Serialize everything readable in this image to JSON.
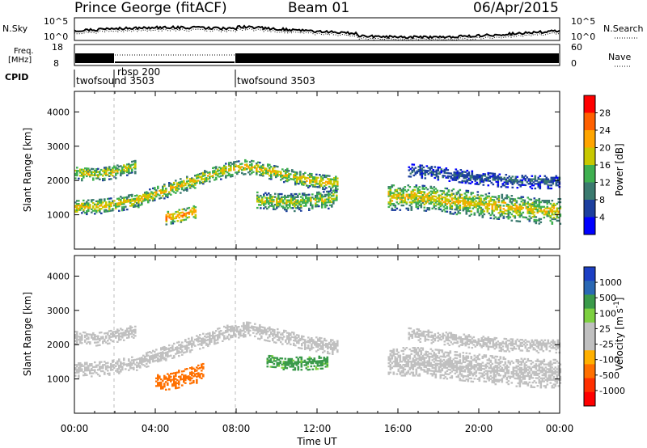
{
  "header": {
    "station": "Prince George (fitACF)",
    "beam": "Beam 01",
    "date": "06/Apr/2015"
  },
  "nsky_panel": {
    "left_label": "N.Sky",
    "right_label": "N.Search",
    "tick_top": "10^5",
    "tick_bottom": "10^0",
    "right_tick_top": "10^5",
    "right_tick_bottom": "10^0"
  },
  "freq_panel": {
    "left_label": "Freq.",
    "left_unit": "[MHz]",
    "right_label": "Nave",
    "left_tick_top": "18",
    "left_tick_bottom": "8",
    "right_tick_top": "60",
    "right_tick_bottom": "0"
  },
  "cpid_panel": {
    "label": "CPID",
    "segments": [
      {
        "label": "twofsound 3503",
        "start_hour": 0
      },
      {
        "label": "rbsp 200",
        "start_hour": 2
      },
      {
        "label": "twofsound 3503",
        "start_hour": 8
      }
    ]
  },
  "colors": {
    "power_scale": [
      "#0000ff",
      "#1d3f9e",
      "#3b7a6f",
      "#3fb050",
      "#c8c800",
      "#ffa500",
      "#ff6000",
      "#ff0000"
    ],
    "velocity_scale": [
      "#1c3fc4",
      "#2a68b4",
      "#3a9a4a",
      "#7dd040",
      "#c0c0c0",
      "#c0c0c0",
      "#ffb000",
      "#ff7000",
      "#ff3000",
      "#ff0000"
    ]
  },
  "chart_data": [
    {
      "type": "heatmap",
      "name": "power-panel",
      "xlabel": "",
      "ylabel": "Slant Range [km]",
      "x_range_hours": [
        0,
        24
      ],
      "ylim": [
        0,
        4600
      ],
      "yticks": [
        1000,
        2000,
        3000,
        4000
      ],
      "colorbar": {
        "label": "Power [dB]",
        "ticks": [
          "28",
          "24",
          "20",
          "16",
          "12",
          "8",
          "4"
        ],
        "range": [
          0,
          32
        ]
      },
      "bands": [
        {
          "x": [
            0.0,
            1.5,
            3.0,
            4.5,
            6.0,
            7.5,
            8.5,
            10.0,
            11.5,
            13.0
          ],
          "y": [
            1200,
            1250,
            1400,
            1700,
            2000,
            2300,
            2400,
            2200,
            2000,
            1900
          ],
          "width": 220,
          "value": 20
        },
        {
          "x": [
            0.0,
            1.0,
            2.0,
            3.0
          ],
          "y": [
            2200,
            2150,
            2250,
            2400
          ],
          "width": 200,
          "value": 19
        },
        {
          "x": [
            4.5,
            5.0,
            5.5,
            6.0
          ],
          "y": [
            900,
            950,
            1000,
            1100
          ],
          "width": 200,
          "value": 25
        },
        {
          "x": [
            9.0,
            10.0,
            11.0,
            12.0,
            13.0
          ],
          "y": [
            1400,
            1350,
            1350,
            1400,
            1450
          ],
          "width": 260,
          "value": 18
        },
        {
          "x": [
            15.5,
            17.0,
            18.5,
            20.0,
            21.5,
            23.0,
            24.0
          ],
          "y": [
            1500,
            1500,
            1400,
            1300,
            1200,
            1100,
            1100
          ],
          "width": 380,
          "value": 20
        },
        {
          "x": [
            16.5,
            18.0,
            19.5,
            21.0,
            22.5,
            24.0
          ],
          "y": [
            2300,
            2200,
            2100,
            2000,
            1950,
            1950
          ],
          "width": 200,
          "value": 8
        }
      ]
    },
    {
      "type": "heatmap",
      "name": "velocity-panel",
      "xlabel": "Time UT",
      "ylabel": "Slant Range [km]",
      "x_range_hours": [
        0,
        24
      ],
      "xticks": [
        "00:00",
        "04:00",
        "08:00",
        "12:00",
        "16:00",
        "20:00",
        "00:00"
      ],
      "ylim": [
        0,
        4600
      ],
      "yticks": [
        1000,
        2000,
        3000,
        4000
      ],
      "colorbar": {
        "label": "Velocity [m s",
        "label_superscript": "-1",
        "label_suffix": "]",
        "ticks": [
          "1000",
          "500",
          "100",
          "25",
          "-25",
          "-100",
          "-500",
          "-1000"
        ]
      },
      "bands": [
        {
          "x": [
            0.0,
            1.5,
            3.0,
            4.5,
            6.0,
            7.5,
            8.5,
            10.0,
            11.5,
            13.0
          ],
          "y": [
            1250,
            1300,
            1450,
            1750,
            2050,
            2350,
            2450,
            2250,
            2050,
            1900
          ],
          "width": 220,
          "value": 0
        },
        {
          "x": [
            0.0,
            1.0,
            2.0,
            3.0
          ],
          "y": [
            2200,
            2150,
            2250,
            2400
          ],
          "width": 200,
          "value": 0
        },
        {
          "x": [
            4.0,
            4.8,
            5.6,
            6.4
          ],
          "y": [
            900,
            950,
            1050,
            1200
          ],
          "width": 260,
          "value": -300
        },
        {
          "x": [
            9.5,
            10.5,
            11.5,
            12.5
          ],
          "y": [
            1500,
            1450,
            1450,
            1500
          ],
          "width": 200,
          "value": 250
        },
        {
          "x": [
            15.5,
            17.0,
            18.5,
            20.0,
            21.5,
            23.0,
            24.0
          ],
          "y": [
            1500,
            1500,
            1400,
            1300,
            1200,
            1150,
            1150
          ],
          "width": 420,
          "value": 0
        },
        {
          "x": [
            16.5,
            18.0,
            19.5,
            21.0,
            22.5,
            24.0
          ],
          "y": [
            2300,
            2200,
            2100,
            2000,
            1950,
            1950
          ],
          "width": 200,
          "value": 0
        }
      ]
    }
  ]
}
